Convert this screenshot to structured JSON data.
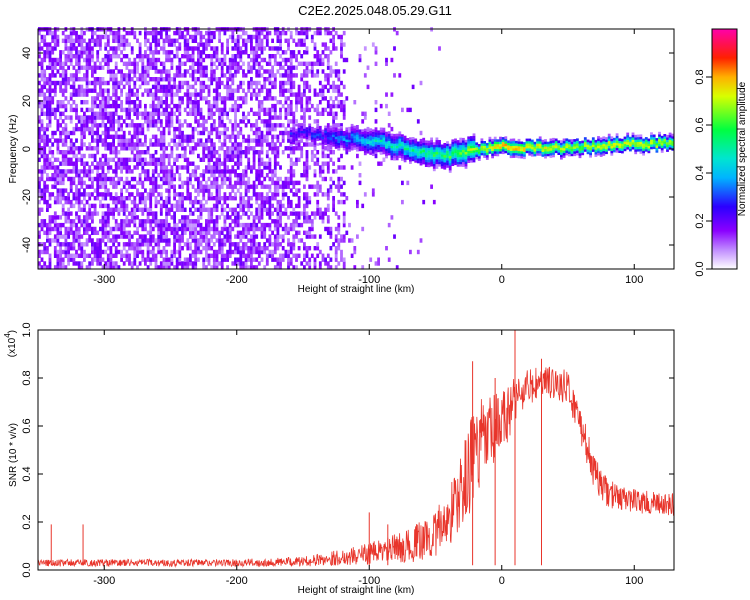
{
  "title": "C2E2.2025.048.05.29.G11",
  "colors": {
    "snr_line": "#e8352b",
    "spectrogram_palette": [
      "#ffffff",
      "#8a00ff",
      "#2b00ff",
      "#00e5ff",
      "#00ff40",
      "#ffe800",
      "#ff2000",
      "#ff00aa"
    ]
  },
  "chart_data": [
    {
      "type": "heatmap",
      "name": "spectrogram",
      "xlabel": "Height of straight line (km)",
      "ylabel": "Frequency (Hz)",
      "xlim": [
        -350,
        130
      ],
      "ylim": [
        -50,
        50
      ],
      "x_ticks": [
        -300,
        -200,
        -100,
        0,
        100
      ],
      "x_tick_labels": [
        "-300",
        "-200",
        "-100",
        "0",
        "100"
      ],
      "y_ticks": [
        -40,
        -20,
        0,
        20,
        40
      ],
      "y_tick_labels": [
        "-40",
        "-20",
        "0",
        "20",
        "40"
      ],
      "colorbar": {
        "label": "Normalized spectral amplitude",
        "range": [
          0,
          1
        ],
        "ticks": [
          0.0,
          0.2,
          0.4,
          0.6,
          0.8
        ],
        "tick_labels": [
          "0.0",
          "0.2",
          "0.4",
          "0.6",
          "0.8"
        ]
      },
      "features": {
        "noise_region_x": [
          -350,
          -120
        ],
        "noise_amplitude": [
          0.1,
          0.25
        ],
        "signal_track": [
          {
            "x": -150,
            "freq": 6,
            "amplitude": 0.3
          },
          {
            "x": -120,
            "freq": 4,
            "amplitude": 0.4
          },
          {
            "x": -100,
            "freq": 3,
            "amplitude": 0.5
          },
          {
            "x": -80,
            "freq": 1,
            "amplitude": 0.55
          },
          {
            "x": -60,
            "freq": -2,
            "amplitude": 0.6
          },
          {
            "x": -40,
            "freq": -3,
            "amplitude": 0.65
          },
          {
            "x": -25,
            "freq": -1,
            "amplitude": 0.75
          },
          {
            "x": -10,
            "freq": 0,
            "amplitude": 0.85
          },
          {
            "x": 0,
            "freq": 1,
            "amplitude": 0.95
          },
          {
            "x": 20,
            "freq": 0,
            "amplitude": 0.9
          },
          {
            "x": 40,
            "freq": 0,
            "amplitude": 0.85
          },
          {
            "x": 60,
            "freq": 0.5,
            "amplitude": 0.8
          },
          {
            "x": 80,
            "freq": 1,
            "amplitude": 0.85
          },
          {
            "x": 100,
            "freq": 1.5,
            "amplitude": 0.85
          },
          {
            "x": 130,
            "freq": 2,
            "amplitude": 0.8
          }
        ]
      }
    },
    {
      "type": "line",
      "name": "snr",
      "xlabel": "Height of straight line (km)",
      "ylabel": "SNR (10 * v/v)",
      "y_multiplier_label": "(x10",
      "y_multiplier_exp": "4",
      "xlim": [
        -350,
        130
      ],
      "ylim": [
        0,
        1.0
      ],
      "x_ticks": [
        -300,
        -200,
        -100,
        0,
        100
      ],
      "x_tick_labels": [
        "-300",
        "-200",
        "-100",
        "0",
        "100"
      ],
      "y_ticks": [
        0.0,
        0.2,
        0.4,
        0.6,
        0.8,
        1.0
      ],
      "y_tick_labels": [
        "0.0",
        "0.2",
        "0.4",
        "0.6",
        "0.8",
        "1.0"
      ],
      "envelope": {
        "x": [
          -350,
          -300,
          -250,
          -200,
          -150,
          -110,
          -90,
          -70,
          -50,
          -40,
          -30,
          -20,
          -10,
          0,
          10,
          20,
          30,
          40,
          50,
          60,
          70,
          80,
          90,
          100,
          110,
          120,
          130
        ],
        "mean": [
          0.03,
          0.03,
          0.03,
          0.03,
          0.035,
          0.06,
          0.08,
          0.1,
          0.15,
          0.22,
          0.33,
          0.5,
          0.55,
          0.6,
          0.72,
          0.76,
          0.78,
          0.78,
          0.76,
          0.6,
          0.4,
          0.32,
          0.3,
          0.29,
          0.28,
          0.27,
          0.27
        ],
        "spread": [
          0.015,
          0.015,
          0.015,
          0.015,
          0.02,
          0.04,
          0.05,
          0.07,
          0.1,
          0.12,
          0.18,
          0.2,
          0.18,
          0.15,
          0.1,
          0.08,
          0.07,
          0.07,
          0.07,
          0.08,
          0.07,
          0.06,
          0.05,
          0.05,
          0.05,
          0.05,
          0.05
        ]
      },
      "spikes": [
        {
          "x": -340,
          "y": 0.19
        },
        {
          "x": -316,
          "y": 0.19
        },
        {
          "x": -100,
          "y": 0.24
        },
        {
          "x": -86,
          "y": 0.19
        },
        {
          "x": -22,
          "y": 0.87
        },
        {
          "x": -5,
          "y": 0.8
        },
        {
          "x": 10,
          "y": 1.0
        },
        {
          "x": 30,
          "y": 0.88
        }
      ]
    }
  ]
}
